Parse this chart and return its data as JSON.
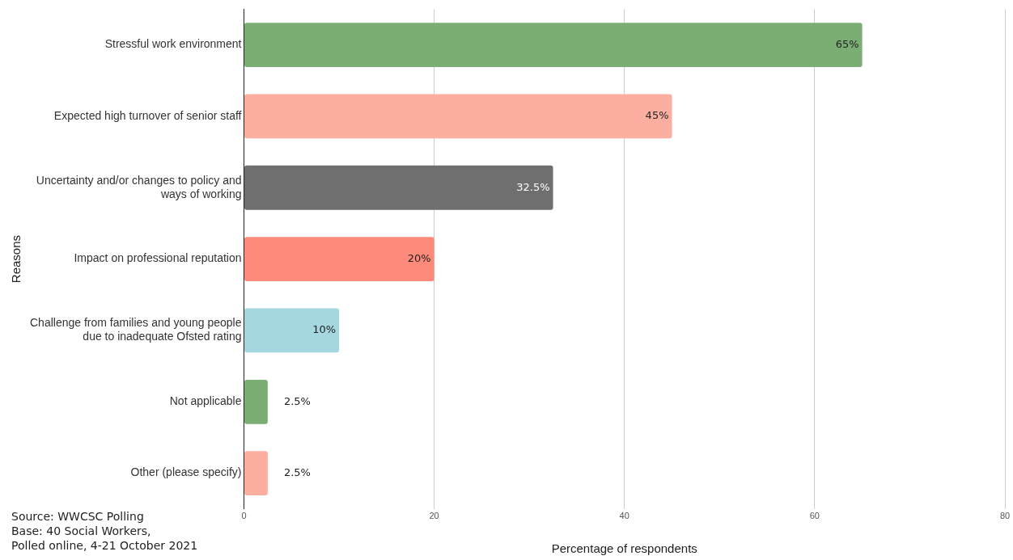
{
  "chart_data": {
    "type": "bar",
    "orientation": "horizontal",
    "xlabel": "Percentage of respondents",
    "ylabel": "Reasons",
    "categories": [
      "Stressful work environment",
      "Expected high turnover of senior staff",
      "Uncertainty and/or changes to policy and ways of working",
      "Impact on professional reputation",
      "Challenge from families and young people due to inadequate Ofsted rating",
      "Not applicable",
      "Other (please specify)"
    ],
    "values": [
      65,
      45,
      32.5,
      20,
      10,
      2.5,
      2.5
    ],
    "colors": [
      "#7aae74",
      "#fcaea0",
      "#6f6f70",
      "#fd8a7a",
      "#a5d8de",
      "#7aae74",
      "#fcaea0"
    ],
    "value_labels": [
      "65%",
      "45%",
      "32.5%",
      "20%",
      "10%",
      "2.5%",
      "2.5%"
    ],
    "xlim": [
      0,
      80
    ],
    "xticks": [
      0,
      20,
      40,
      60,
      80
    ],
    "grid": "x",
    "legend": false,
    "annotations": [
      "Source: WWCSC Polling",
      "Base: 40 Social Workers,",
      "Polled online, 4-21 October 2021"
    ]
  }
}
